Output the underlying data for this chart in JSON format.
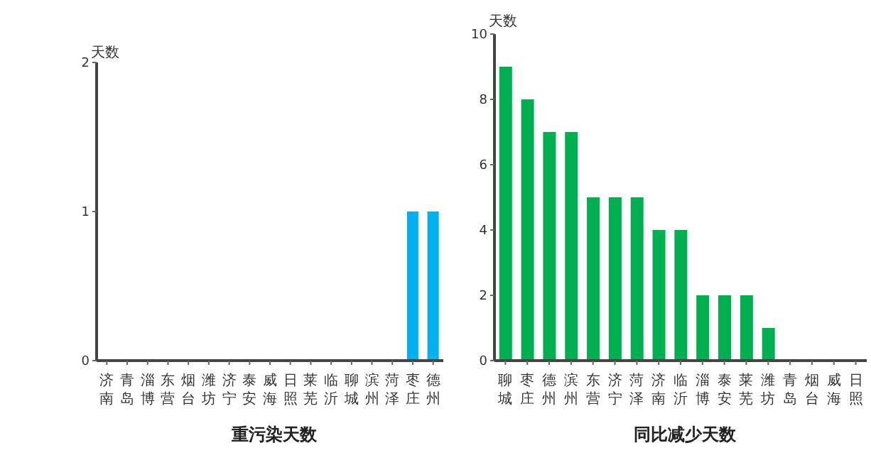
{
  "chart_data": [
    {
      "type": "bar",
      "xlabel": "重污染天数",
      "ylabel": "天数",
      "categories": [
        "济南",
        "青岛",
        "淄博",
        "东营",
        "烟台",
        "潍坊",
        "济宁",
        "泰安",
        "威海",
        "日照",
        "莱芜",
        "临沂",
        "聊城",
        "滨州",
        "菏泽",
        "枣庄",
        "德州"
      ],
      "values": [
        0,
        0,
        0,
        0,
        0,
        0,
        0,
        0,
        0,
        0,
        0,
        0,
        0,
        0,
        0,
        1,
        1
      ],
      "color": "#00b0f0",
      "ylim": [
        0,
        2
      ],
      "yticks": [
        0,
        1,
        2
      ],
      "grid": false,
      "legend": false
    },
    {
      "type": "bar",
      "xlabel": "同比减少天数",
      "ylabel": "天数",
      "categories": [
        "聊城",
        "枣庄",
        "德州",
        "滨州",
        "东营",
        "济宁",
        "菏泽",
        "济南",
        "临沂",
        "淄博",
        "泰安",
        "莱芜",
        "潍坊",
        "青岛",
        "烟台",
        "威海",
        "日照"
      ],
      "values": [
        9,
        8,
        7,
        7,
        5,
        5,
        5,
        4,
        4,
        2,
        2,
        2,
        1,
        0,
        0,
        0,
        0
      ],
      "color": "#00b050",
      "ylim": [
        0,
        10
      ],
      "yticks": [
        0,
        2,
        4,
        6,
        8,
        10
      ],
      "grid": false,
      "legend": false
    }
  ]
}
